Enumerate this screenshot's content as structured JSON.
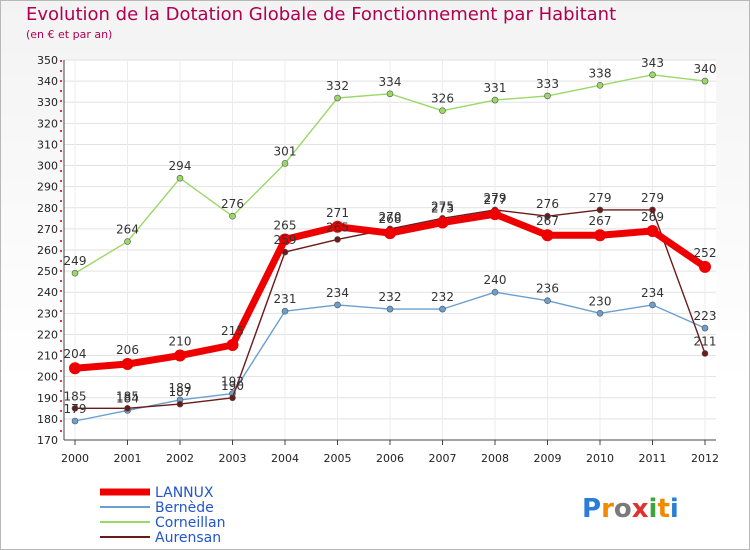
{
  "chart_data": {
    "type": "line",
    "title": "Evolution de la Dotation Globale de Fonctionnement par Habitant",
    "subtitle": "(en € et par an)",
    "categories": [
      "2000",
      "2001",
      "2002",
      "2003",
      "2004",
      "2005",
      "2006",
      "2007",
      "2008",
      "2009",
      "2010",
      "2011",
      "2012"
    ],
    "ylim": [
      170,
      350
    ],
    "ytick_step": 10,
    "series": [
      {
        "name": "Bernède",
        "color": "#6a9fcf",
        "values": [
          179,
          184,
          189,
          192,
          231,
          234,
          232,
          232,
          240,
          236,
          230,
          234,
          223
        ]
      },
      {
        "name": "Corneillan",
        "color": "#99d966",
        "values": [
          249,
          264,
          294,
          276,
          301,
          332,
          334,
          326,
          331,
          333,
          338,
          343,
          340
        ]
      },
      {
        "name": "Aurensan",
        "color": "#6b1a1a",
        "values": [
          185,
          185,
          187,
          190,
          259,
          265,
          270,
          275,
          279,
          276,
          279,
          279,
          211
        ]
      },
      {
        "name": "LANNUX",
        "color": "#ee0000",
        "values": [
          204,
          206,
          210,
          215,
          265,
          271,
          268,
          273,
          277,
          267,
          267,
          269,
          252
        ]
      }
    ],
    "legend_order": [
      "LANNUX",
      "Bernède",
      "Corneillan",
      "Aurensan"
    ],
    "logo": "Proxiti"
  }
}
